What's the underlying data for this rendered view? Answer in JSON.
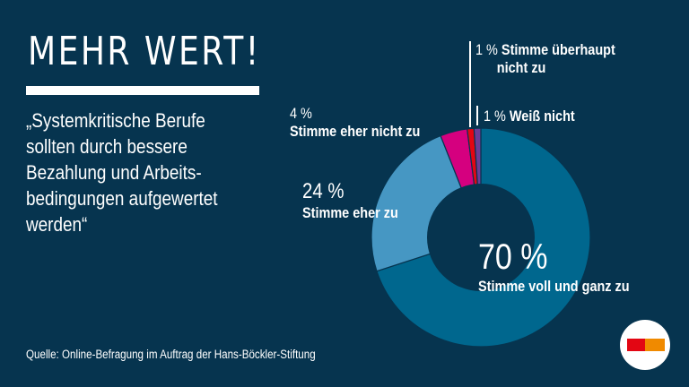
{
  "header": {
    "title": "MEHR WERT!"
  },
  "quote": {
    "lines": [
      "„Systemkritische Berufe",
      "sollten durch bessere",
      "Bezahlung und Arbeits-",
      "bedingungen aufgewertet",
      "werden“"
    ]
  },
  "source": "Quelle: Online-Befragung im Auftrag der Hans-Böckler-Stiftung",
  "labels": {
    "voll_pct": "70 %",
    "voll_text": "Stimme voll und ganz zu",
    "eher_pct": "24 %",
    "eher_text": "Stimme eher zu",
    "ehernicht_pct": "4 %",
    "ehernicht_text": "Stimme eher nicht zu",
    "ueberhaupt_pct": "1 %",
    "ueberhaupt_text1": "Stimme überhaupt",
    "ueberhaupt_text2": "nicht zu",
    "weiss_pct": "1 %",
    "weiss_text": "Weiß nicht"
  },
  "colors": {
    "background": "#06344f",
    "voll": "#00678e",
    "eher": "#4697c3",
    "ehernicht": "#d5007f",
    "ueberhaupt": "#e30613",
    "weiss": "#6c3c96"
  },
  "chart_data": {
    "type": "pie",
    "title": "Systemkritische Berufe sollten durch bessere Bezahlung und Arbeitsbedingungen aufgewertet werden",
    "categories": [
      "Stimme voll und ganz zu",
      "Stimme eher zu",
      "Stimme eher nicht zu",
      "Stimme überhaupt nicht zu",
      "Weiß nicht"
    ],
    "values": [
      70,
      24,
      4,
      1,
      1
    ],
    "unit": "%",
    "donut": true,
    "source": "Online-Befragung im Auftrag der Hans-Böckler-Stiftung"
  }
}
